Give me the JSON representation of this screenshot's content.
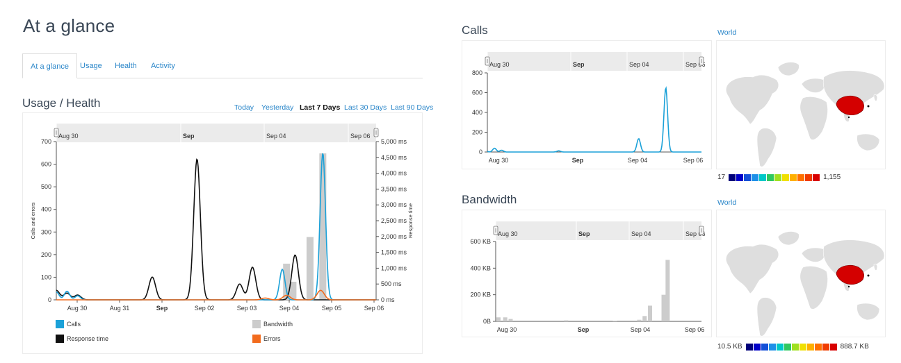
{
  "page": {
    "title": "At a glance"
  },
  "tabs": [
    {
      "label": "At a glance",
      "active": true
    },
    {
      "label": "Usage",
      "active": false
    },
    {
      "label": "Health",
      "active": false
    },
    {
      "label": "Activity",
      "active": false
    }
  ],
  "usage_health": {
    "title": "Usage / Health",
    "ranges": [
      {
        "label": "Today",
        "active": false
      },
      {
        "label": "Yesterday",
        "active": false
      },
      {
        "label": "Last 7 Days",
        "active": true
      },
      {
        "label": "Last 30 Days",
        "active": false
      },
      {
        "label": "Last 90 Days",
        "active": false
      }
    ]
  },
  "calls_section": {
    "title": "Calls",
    "world_link": "World",
    "scale_min": "17",
    "scale_max": "1,155"
  },
  "bandwidth_section": {
    "title": "Bandwidth",
    "world_link": "World",
    "scale_min": "10.5 KB",
    "scale_max": "888.7 KB"
  },
  "colors": {
    "calls": "#1ba1d8",
    "response": "#111111",
    "bandwidth": "#cccccc",
    "errors": "#f26b1d",
    "highlight_country": "#d40000",
    "land": "#dedede",
    "scale": [
      "#00007a",
      "#0000c8",
      "#1450d8",
      "#1e90e8",
      "#00c8c8",
      "#30c860",
      "#a0e020",
      "#f0e000",
      "#ffb000",
      "#ff7000",
      "#f03c00",
      "#d80000"
    ]
  },
  "chart_data": [
    {
      "type": "line",
      "title": "Usage / Health",
      "ylabel": "Calls and errors",
      "y2label": "Response time",
      "ylim": [
        0,
        700
      ],
      "y2lim": [
        0,
        5000
      ],
      "yticks": [
        "0",
        "100",
        "200",
        "300",
        "400",
        "500",
        "600",
        "700"
      ],
      "y2ticks": [
        "0 ms",
        "500 ms",
        "1,000 ms",
        "1,500 ms",
        "2,000 ms",
        "2,500 ms",
        "3,000 ms",
        "3,500 ms",
        "4,000 ms",
        "4,500 ms",
        "5,000 ms"
      ],
      "xticks": [
        "Aug 30",
        "Aug 31",
        "Sep",
        "Sep 02",
        "Sep 03",
        "Sep 04",
        "Sep 05",
        "Sep 06"
      ],
      "navigator_labels": [
        "Aug 30",
        "Sep",
        "Sep 04",
        "Sep 06"
      ],
      "x_range_days": [
        0,
        7.5
      ],
      "series": [
        {
          "name": "Calls",
          "axis": "left",
          "peaks": [
            [
              0.0,
              35
            ],
            [
              0.25,
              38
            ],
            [
              0.5,
              18
            ],
            [
              5.3,
              135
            ],
            [
              6.25,
              650
            ]
          ]
        },
        {
          "name": "Response time",
          "axis": "right",
          "peaks": [
            [
              0.0,
              300
            ],
            [
              0.25,
              210
            ],
            [
              0.5,
              150
            ],
            [
              2.25,
              720
            ],
            [
              3.3,
              4450
            ],
            [
              4.3,
              500
            ],
            [
              4.6,
              1030
            ],
            [
              5.6,
              1420
            ]
          ]
        },
        {
          "name": "Errors",
          "axis": "left",
          "peaks": [
            [
              4.9,
              8
            ],
            [
              5.4,
              20
            ],
            [
              6.2,
              42
            ]
          ]
        },
        {
          "name": "Bandwidth",
          "axis": "left",
          "bars": [
            [
              5.4,
              160
            ],
            [
              5.55,
              80
            ],
            [
              5.95,
              278
            ],
            [
              6.25,
              648
            ]
          ]
        }
      ],
      "legend": [
        "Calls",
        "Bandwidth",
        "Response time",
        "Errors"
      ]
    },
    {
      "type": "line",
      "title": "Calls",
      "ylim": [
        0,
        800
      ],
      "yticks": [
        "0",
        "200",
        "400",
        "600",
        "800"
      ],
      "xticks": [
        "Aug 30",
        "Sep",
        "Sep 04",
        "Sep 06"
      ],
      "navigator_labels": [
        "Aug 30",
        "Sep",
        "Sep 04",
        "Sep 06"
      ],
      "x_range_days": [
        0,
        7.5
      ],
      "series": [
        {
          "name": "Calls",
          "peaks": [
            [
              -0.1,
              30
            ],
            [
              0.25,
              38
            ],
            [
              0.5,
              18
            ],
            [
              2.5,
              12
            ],
            [
              5.3,
              135
            ],
            [
              6.25,
              650
            ]
          ]
        }
      ]
    },
    {
      "type": "bar",
      "title": "Bandwidth",
      "ylim": [
        0,
        600
      ],
      "yticks": [
        "0B",
        "200 KB",
        "400 KB",
        "600 KB"
      ],
      "xticks": [
        "Aug 30",
        "Sep",
        "Sep 04",
        "Sep 06"
      ],
      "navigator_labels": [
        "Aug 30",
        "Sep",
        "Sep 04",
        "Sep 06"
      ],
      "x_range_days": [
        0,
        7.5
      ],
      "bars": [
        [
          0.0,
          30
        ],
        [
          0.25,
          30
        ],
        [
          0.45,
          18
        ],
        [
          2.5,
          8
        ],
        [
          4.3,
          5
        ],
        [
          5.2,
          12
        ],
        [
          5.4,
          40
        ],
        [
          5.6,
          118
        ],
        [
          6.1,
          200
        ],
        [
          6.25,
          462
        ]
      ]
    }
  ]
}
